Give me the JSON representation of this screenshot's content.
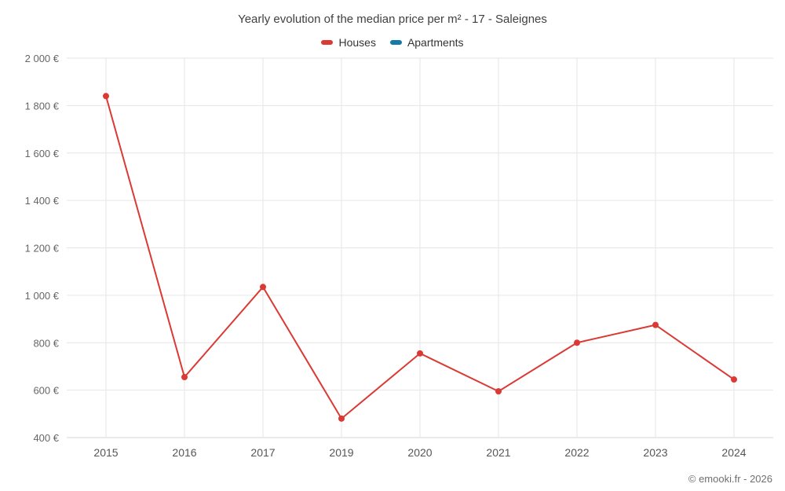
{
  "chart_data": {
    "type": "line",
    "title": "Yearly evolution of the median price per m² - 17 - Saleignes",
    "categories": [
      "2015",
      "2016",
      "2017",
      "2019",
      "2020",
      "2021",
      "2022",
      "2023",
      "2024"
    ],
    "series": [
      {
        "name": "Houses",
        "color": "#db3a34",
        "values": [
          1840,
          655,
          1035,
          480,
          755,
          595,
          800,
          875,
          645
        ]
      },
      {
        "name": "Apartments",
        "color": "#1379a5",
        "values": []
      }
    ],
    "ylim": [
      400,
      2000
    ],
    "ytick_step": 200,
    "ytick_suffix": " €",
    "xlabel": "",
    "ylabel": "",
    "grid": true,
    "legend_position": "top",
    "footer": "© emooki.fr - 2026"
  }
}
